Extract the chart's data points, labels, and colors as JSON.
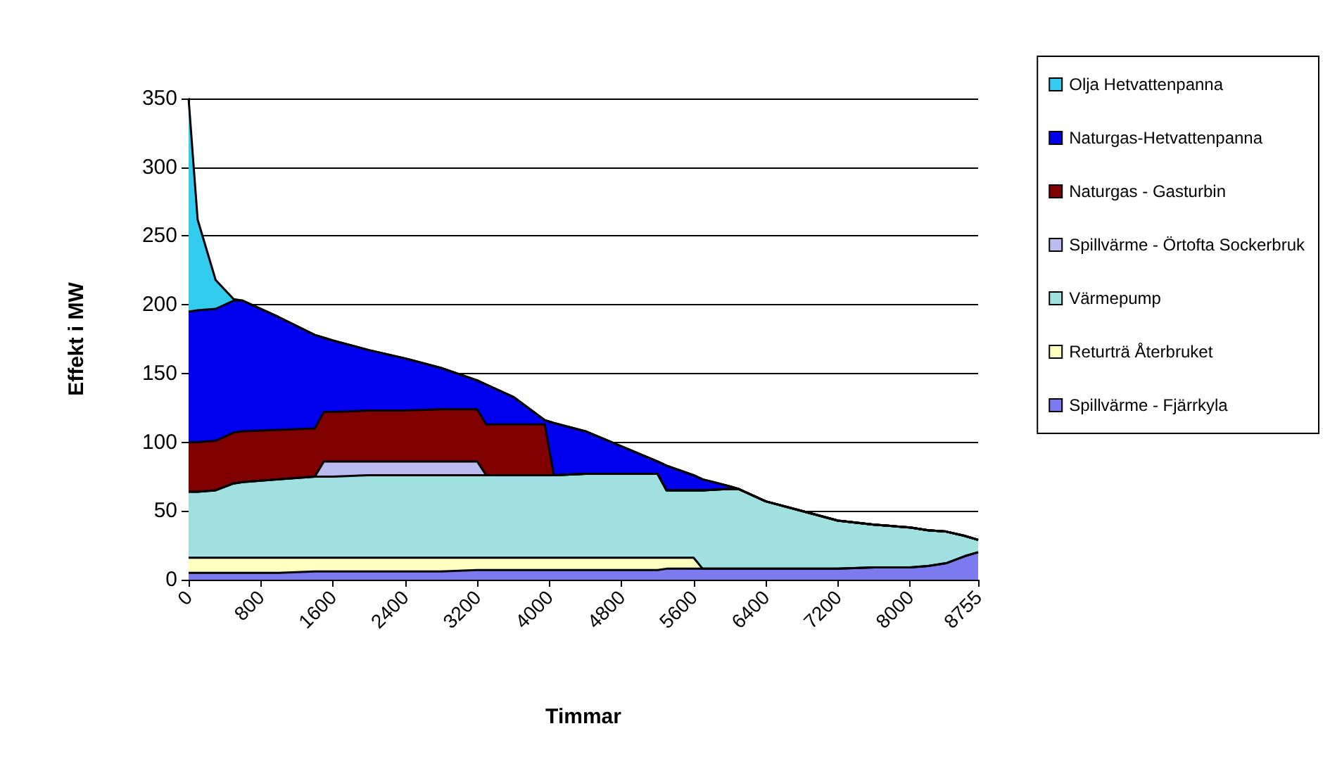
{
  "chart_data": {
    "type": "area",
    "stacked": true,
    "xlabel": "Timmar",
    "ylabel": "Effekt i MW",
    "x": [
      0,
      100,
      300,
      500,
      600,
      1000,
      1400,
      1500,
      1600,
      2000,
      2400,
      2800,
      3200,
      3300,
      3600,
      3950,
      4050,
      4400,
      4800,
      5200,
      5300,
      5600,
      5700,
      6000,
      6100,
      6400,
      6800,
      7200,
      7600,
      8000,
      8200,
      8400,
      8600,
      8755
    ],
    "series": [
      {
        "name": "Spillvärme - Fjärrkyla",
        "color": "#7b7bef",
        "values": [
          5,
          5,
          5,
          5,
          5,
          5,
          6,
          6,
          6,
          6,
          6,
          6,
          7,
          7,
          7,
          7,
          7,
          7,
          7,
          7,
          8,
          8,
          8,
          8,
          8,
          8,
          8,
          8,
          9,
          9,
          10,
          12,
          17,
          20
        ]
      },
      {
        "name": "Returträ Återbruket",
        "color": "#ffffc0",
        "values": [
          11,
          11,
          11,
          11,
          11,
          11,
          10,
          10,
          10,
          10,
          10,
          10,
          9,
          9,
          9,
          9,
          9,
          9,
          9,
          9,
          8,
          8,
          0,
          0,
          0,
          0,
          0,
          0,
          0,
          0,
          0,
          0,
          0,
          0
        ]
      },
      {
        "name": "Värmepump",
        "color": "#a0e0e0",
        "values": [
          48,
          48,
          49,
          54,
          55,
          57,
          59,
          59,
          59,
          60,
          60,
          60,
          60,
          60,
          60,
          60,
          60,
          61,
          61,
          61,
          49,
          49,
          57,
          58,
          58,
          49,
          42,
          35,
          31,
          29,
          26,
          23,
          15,
          9
        ]
      },
      {
        "name": "Spillvärme - Örtofta Sockerbruk",
        "color": "#bbbbf0",
        "values": [
          0,
          0,
          0,
          0,
          0,
          0,
          0,
          11,
          11,
          10,
          10,
          10,
          10,
          0,
          0,
          0,
          0,
          0,
          0,
          0,
          0,
          0,
          0,
          0,
          0,
          0,
          0,
          0,
          0,
          0,
          0,
          0,
          0,
          0
        ]
      },
      {
        "name": "Naturgas - Gasturbin",
        "color": "#800000",
        "values": [
          36,
          36,
          36,
          37,
          37,
          36,
          35,
          36,
          36,
          37,
          37,
          38,
          38,
          37,
          37,
          37,
          0,
          0,
          0,
          0,
          0,
          0,
          0,
          0,
          0,
          0,
          0,
          0,
          0,
          0,
          0,
          0,
          0,
          0
        ]
      },
      {
        "name": "Naturgas-Hetvattenpanna",
        "color": "#0000ee",
        "values": [
          95,
          96,
          96,
          96,
          95,
          82,
          68,
          54,
          52,
          44,
          38,
          30,
          21,
          29,
          20,
          3,
          38,
          31,
          20,
          9,
          18,
          11,
          8,
          2,
          0,
          0,
          0,
          0,
          0,
          0,
          0,
          0,
          0,
          0
        ]
      },
      {
        "name": "Olja Hetvattenpanna",
        "color": "#33ccee",
        "values": [
          155,
          66,
          21,
          1,
          0,
          0,
          0,
          0,
          0,
          0,
          0,
          0,
          0,
          0,
          0,
          0,
          0,
          0,
          0,
          0,
          0,
          0,
          0,
          0,
          0,
          0,
          0,
          0,
          0,
          0,
          0,
          0,
          0,
          0
        ]
      }
    ],
    "xlim": [
      0,
      8755
    ],
    "xticks": [
      0,
      800,
      1600,
      2400,
      3200,
      4000,
      4800,
      5600,
      6400,
      7200,
      8000,
      8755
    ],
    "ylim": [
      0,
      350
    ],
    "yticks": [
      0,
      50,
      100,
      150,
      200,
      250,
      300,
      350
    ],
    "grid": "y",
    "legend": "right"
  }
}
